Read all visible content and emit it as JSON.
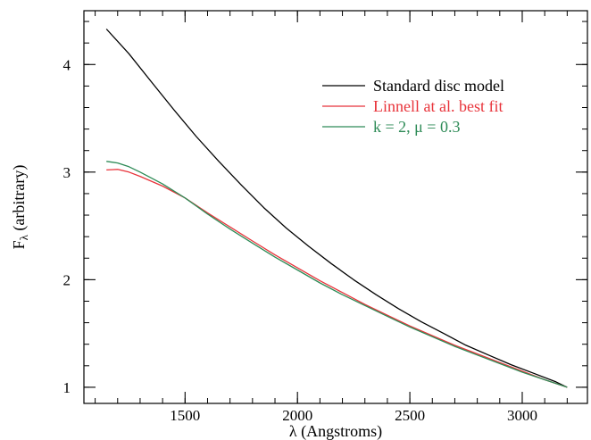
{
  "chart_data": {
    "type": "line",
    "xlabel": "λ (Angstroms)",
    "ylabel_main": "F",
    "ylabel_sub": "λ",
    "ylabel_rest": " (arbitrary)",
    "xlim": [
      1050,
      3290
    ],
    "ylim": [
      0.85,
      4.5
    ],
    "x_ticks": [
      1500,
      2000,
      2500,
      3000
    ],
    "y_ticks": [
      1,
      2,
      3,
      4
    ],
    "x_minor_step": 100,
    "y_minor_step": 0.2,
    "legend_position": "top-right",
    "grid": false,
    "series": [
      {
        "name": "Standard disc model",
        "color": "#000000",
        "x": [
          1150,
          1250,
          1350,
          1450,
          1550,
          1650,
          1750,
          1850,
          1950,
          2050,
          2150,
          2250,
          2350,
          2450,
          2550,
          2650,
          2750,
          2850,
          2950,
          3050,
          3150,
          3200
        ],
        "y": [
          4.33,
          4.1,
          3.84,
          3.58,
          3.33,
          3.1,
          2.88,
          2.67,
          2.48,
          2.31,
          2.15,
          2.0,
          1.86,
          1.73,
          1.61,
          1.5,
          1.39,
          1.3,
          1.21,
          1.13,
          1.05,
          1.0
        ]
      },
      {
        "name": "Linnell at al. best fit",
        "color": "#e8333a",
        "x": [
          1150,
          1200,
          1250,
          1300,
          1400,
          1500,
          1600,
          1700,
          1800,
          1900,
          2000,
          2100,
          2200,
          2300,
          2400,
          2500,
          2600,
          2700,
          2800,
          2900,
          3000,
          3100,
          3200
        ],
        "y": [
          3.02,
          3.025,
          3.0,
          2.96,
          2.87,
          2.76,
          2.62,
          2.49,
          2.36,
          2.23,
          2.11,
          1.99,
          1.88,
          1.77,
          1.67,
          1.57,
          1.48,
          1.39,
          1.31,
          1.23,
          1.15,
          1.07,
          1.0
        ]
      },
      {
        "name": "k = 2, μ = 0.3",
        "color": "#2e8b57",
        "x": [
          1150,
          1200,
          1250,
          1300,
          1400,
          1500,
          1600,
          1700,
          1800,
          1900,
          2000,
          2100,
          2200,
          2300,
          2400,
          2500,
          2600,
          2700,
          2800,
          2900,
          3000,
          3100,
          3200
        ],
        "y": [
          3.1,
          3.085,
          3.05,
          3.0,
          2.89,
          2.76,
          2.61,
          2.47,
          2.34,
          2.21,
          2.09,
          1.97,
          1.86,
          1.76,
          1.66,
          1.56,
          1.47,
          1.38,
          1.3,
          1.22,
          1.14,
          1.07,
          1.0
        ]
      }
    ]
  }
}
